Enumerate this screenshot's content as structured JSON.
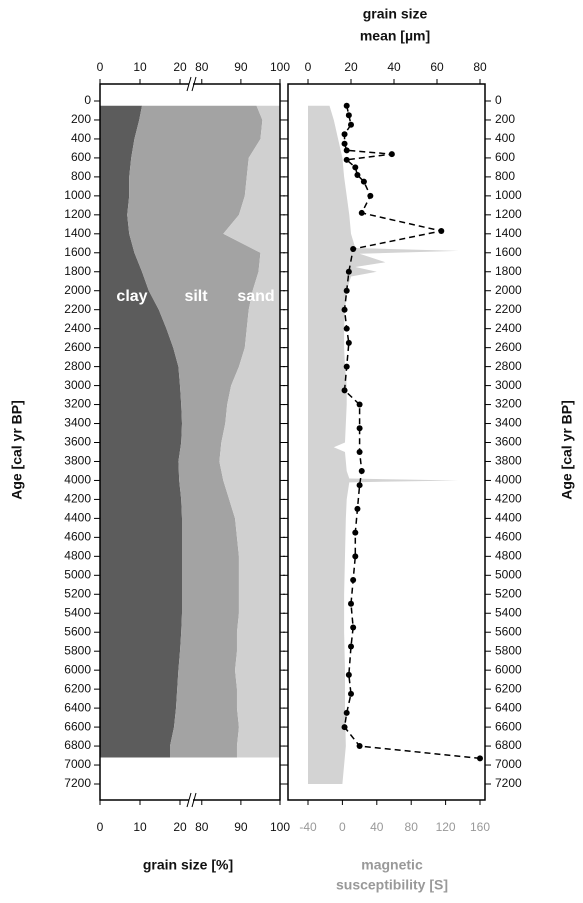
{
  "chart_data": [
    {
      "type": "stacked-area",
      "xlabel": "grain size [%]",
      "ylabel": "Age [cal yr BP]",
      "xlim": [
        0,
        100
      ],
      "xbreak": [
        22.5,
        77.5
      ],
      "xticks": [
        0,
        10,
        20,
        80,
        90,
        100
      ],
      "ylim": [
        0,
        7200
      ],
      "yticks": [
        0,
        200,
        400,
        600,
        800,
        1000,
        1200,
        1400,
        1600,
        1800,
        2000,
        2200,
        2400,
        2600,
        2800,
        3000,
        3200,
        3400,
        3600,
        3800,
        4000,
        4200,
        4400,
        4600,
        4800,
        5000,
        5200,
        5400,
        5600,
        5800,
        6000,
        6200,
        6400,
        6600,
        6800,
        7000,
        7200
      ],
      "ages": [
        50,
        200,
        400,
        600,
        800,
        1000,
        1200,
        1400,
        1600,
        1800,
        2000,
        2200,
        2400,
        2600,
        2800,
        3000,
        3200,
        3400,
        3600,
        3800,
        4000,
        4200,
        4400,
        4600,
        4800,
        5000,
        5200,
        5400,
        5600,
        5800,
        6000,
        6200,
        6400,
        6600,
        6800,
        6920
      ],
      "series": [
        {
          "name": "clay",
          "color": "#5c5c5c",
          "values": [
            10.5,
            9.8,
            8.6,
            7.8,
            7.3,
            7.3,
            6.8,
            7.3,
            8.6,
            10.5,
            12.2,
            14.7,
            16.6,
            18.3,
            19.6,
            20,
            20.3,
            20.5,
            20.3,
            19.6,
            19.8,
            20.3,
            20.5,
            20.5,
            20.5,
            20.5,
            20.5,
            20.5,
            20.3,
            20,
            19.6,
            19.3,
            19,
            18.5,
            17.5,
            17.5
          ]
        },
        {
          "name": "silt",
          "color": "#a3a3a3",
          "values": [
            83.5,
            85.7,
            86.4,
            84.2,
            84.2,
            83.7,
            82.7,
            78.2,
            86.4,
            84,
            80.8,
            77.3,
            74.9,
            72.7,
            69.9,
            67.5,
            66.2,
            65.5,
            64.7,
            64.9,
            65.7,
            66.7,
            68,
            68.5,
            69,
            69,
            69,
            69,
            68.7,
            69,
            68.9,
            69.7,
            70,
            71,
            71.5,
            71.5
          ]
        },
        {
          "name": "sand",
          "color": "#d0d0d0",
          "values": [
            6,
            4.5,
            5,
            8,
            8.5,
            9,
            10.5,
            14.5,
            5,
            5.5,
            7,
            8,
            8.5,
            9,
            10.5,
            12.5,
            13.5,
            14,
            15,
            15.5,
            14.5,
            13,
            11.5,
            11,
            10.5,
            10.5,
            10.5,
            10.5,
            11,
            11,
            11.5,
            11,
            11,
            10.5,
            11,
            11
          ]
        }
      ]
    },
    {
      "type": "line",
      "top": {
        "xlabel": [
          "grain size",
          "mean [µm]"
        ],
        "xlim": [
          0,
          80
        ],
        "xticks": [
          0,
          20,
          40,
          60,
          80
        ]
      },
      "bottom": {
        "xlabel": [
          "magnetic",
          "susceptibility [S]"
        ],
        "xlim": [
          -40,
          160
        ],
        "xticks": [
          -40,
          0,
          40,
          80,
          120,
          160
        ],
        "color": "#999999"
      },
      "series": [
        {
          "axis": "bottom",
          "kind": "area",
          "color": "#d3d3d3",
          "ages": [
            50,
            200,
            400,
            600,
            800,
            1000,
            1200,
            1400,
            1550,
            1580,
            1610,
            1700,
            1750,
            1800,
            1850,
            2000,
            2200,
            2400,
            2600,
            2800,
            3000,
            3200,
            3400,
            3600,
            3650,
            3700,
            3900,
            3980,
            4000,
            4020,
            4200,
            4400,
            4800,
            5200,
            5600,
            6000,
            6400,
            6800,
            7000,
            7200
          ],
          "values": [
            -15,
            -10,
            -5,
            0,
            2,
            5,
            8,
            10,
            15,
            135,
            20,
            50,
            15,
            40,
            10,
            5,
            3,
            2,
            2,
            3,
            5,
            5,
            4,
            3,
            -10,
            3,
            5,
            8,
            135,
            8,
            5,
            4,
            3,
            2,
            2,
            3,
            3,
            4,
            2,
            0
          ]
        },
        {
          "axis": "top",
          "kind": "line",
          "color": "#000000",
          "ages": [
            50,
            150,
            250,
            350,
            450,
            520,
            560,
            620,
            700,
            780,
            850,
            1000,
            1180,
            1370,
            1560,
            1800,
            2000,
            2200,
            2400,
            2550,
            2800,
            3050,
            3200,
            3450,
            3700,
            3900,
            4050,
            4300,
            4550,
            4800,
            5050,
            5300,
            5550,
            5750,
            6050,
            6250,
            6450,
            6600,
            6800,
            6930
          ],
          "values": [
            18,
            19,
            20,
            17,
            17,
            18,
            39,
            18,
            22,
            23,
            26,
            29,
            25,
            62,
            21,
            19,
            18,
            17,
            18,
            19,
            18,
            17,
            24,
            24,
            24,
            25,
            24,
            23,
            22,
            22,
            21,
            20,
            21,
            20,
            19,
            20,
            18,
            17,
            24,
            80
          ]
        }
      ]
    }
  ]
}
